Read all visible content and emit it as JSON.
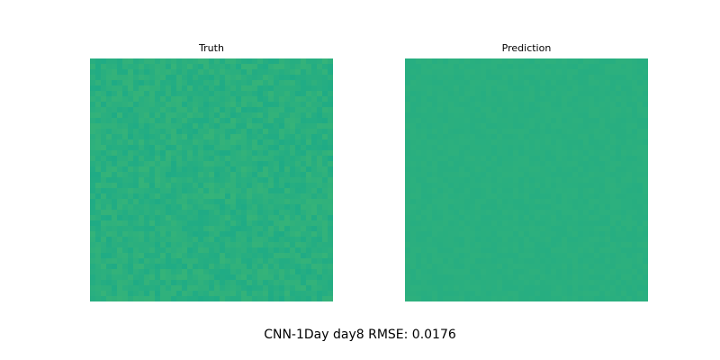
{
  "chart_data": [
    {
      "type": "heatmap",
      "title": "Truth",
      "colormap": "viridis",
      "dominant_color": "#2aaf7f",
      "axes_visible": false
    },
    {
      "type": "heatmap",
      "title": "Prediction",
      "colormap": "viridis",
      "dominant_color": "#2aaf7f",
      "axes_visible": false
    }
  ],
  "figure": {
    "suptitle": "CNN-1Day day8 RMSE: 0.0176"
  }
}
